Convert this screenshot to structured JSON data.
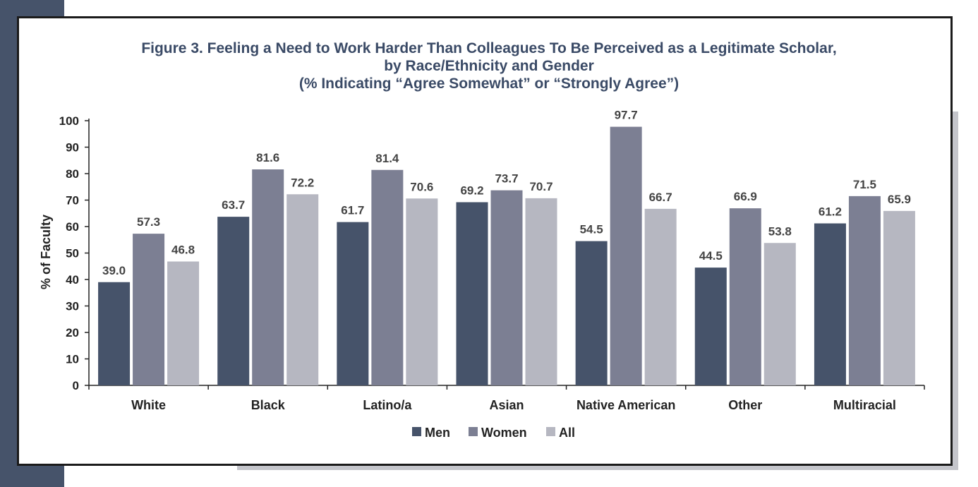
{
  "colors": {
    "men": "#46536a",
    "women": "#7c7f93",
    "all": "#b6b7c1"
  },
  "chart_data": {
    "type": "bar",
    "title_lines": [
      "Figure 3. Feeling a Need to Work Harder Than Colleagues To Be Perceived as a Legitimate Scholar,",
      "by Race/Ethnicity and Gender",
      "(% Indicating “Agree Somewhat” or “Strongly Agree”)"
    ],
    "xlabel": "",
    "ylabel": "% of Faculty",
    "ylim": [
      0,
      100
    ],
    "yticks": [
      0,
      10,
      20,
      30,
      40,
      50,
      60,
      70,
      80,
      90,
      100
    ],
    "categories": [
      "White",
      "Black",
      "Latino/a",
      "Asian",
      "Native American",
      "Other",
      "Multiracial"
    ],
    "series": [
      {
        "name": "Men",
        "values": [
          39.0,
          63.7,
          61.7,
          69.2,
          54.5,
          44.5,
          61.2
        ]
      },
      {
        "name": "Women",
        "values": [
          57.3,
          81.6,
          81.4,
          73.7,
          97.7,
          66.9,
          71.5
        ]
      },
      {
        "name": "All",
        "values": [
          46.8,
          72.2,
          70.6,
          70.7,
          66.7,
          53.8,
          65.9
        ]
      }
    ],
    "data_labels": [
      [
        "39.0",
        "63.7",
        "61.7",
        "69.2",
        "54.5",
        "44.5",
        "61.2"
      ],
      [
        "57.3",
        "81.6",
        "81.4",
        "73.7",
        "97.7",
        "66.9",
        "71.5"
      ],
      [
        "46.8",
        "72.2",
        "70.6",
        "70.7",
        "66.7",
        "53.8",
        "65.9"
      ]
    ],
    "legend_position": "bottom",
    "grid": false
  }
}
